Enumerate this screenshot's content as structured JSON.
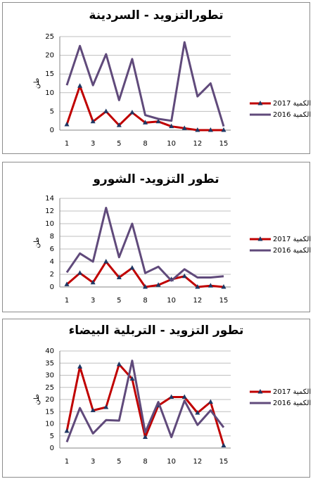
{
  "chart_data": [
    {
      "type": "line",
      "title": "تطورالتزويد - السردينة",
      "ylabel": "طن",
      "categories": [
        "1",
        null,
        "3",
        null,
        "5",
        null,
        "8",
        null,
        "10",
        null,
        "12",
        null,
        "15"
      ],
      "series": [
        {
          "name": "الكمية 2017",
          "color": "#c00000",
          "marker": "triangle",
          "values": [
            1.5,
            11.8,
            2.3,
            5,
            1.3,
            4.7,
            2,
            2.3,
            1,
            0.5,
            0,
            0,
            0
          ]
        },
        {
          "name": "الكمية 2016",
          "color": "#604a7b",
          "marker": "none",
          "values": [
            12,
            22.5,
            12,
            20.3,
            8,
            19,
            4,
            3,
            2.5,
            23.5,
            9,
            12.5,
            1
          ]
        }
      ],
      "ylim": [
        0,
        25
      ],
      "yticks": [
        0,
        5,
        10,
        15,
        20,
        25
      ],
      "grid": true
    },
    {
      "type": "line",
      "title": "تطور التزويد- الشورو",
      "ylabel": "طن",
      "categories": [
        "1",
        null,
        "3",
        null,
        "5",
        null,
        "8",
        null,
        "10",
        null,
        "12",
        null,
        "15"
      ],
      "series": [
        {
          "name": "الكمية 2017",
          "color": "#c00000",
          "marker": "triangle",
          "values": [
            0.4,
            2.2,
            0.7,
            4,
            1.5,
            3,
            0,
            0.3,
            1.2,
            1.7,
            0,
            0.2,
            0
          ]
        },
        {
          "name": "الكمية 2016",
          "color": "#604a7b",
          "marker": "none",
          "values": [
            2.3,
            5.3,
            4,
            12.5,
            4.7,
            10,
            2.2,
            3.2,
            1,
            2.8,
            1.5,
            1.5,
            1.7
          ]
        }
      ],
      "ylim": [
        0,
        14
      ],
      "yticks": [
        0,
        2,
        4,
        6,
        8,
        10,
        12,
        14
      ],
      "grid": true
    },
    {
      "type": "line",
      "title": "تطور التزويد - التربلية البيضاء",
      "ylabel": "طن",
      "categories": [
        "1",
        null,
        "3",
        null,
        "5",
        null,
        "8",
        null,
        "10",
        null,
        "12",
        null,
        "15"
      ],
      "series": [
        {
          "name": "الكمية 2017",
          "color": "#c00000",
          "marker": "triangle",
          "values": [
            7,
            33.5,
            15.5,
            16.8,
            34.5,
            28.5,
            4.5,
            17.5,
            21,
            21,
            14.5,
            19,
            1
          ]
        },
        {
          "name": "الكمية 2016",
          "color": "#604a7b",
          "marker": "none",
          "values": [
            2.5,
            16.5,
            6,
            11.5,
            11.3,
            36,
            6.5,
            19,
            4.5,
            19.5,
            9.5,
            15.5,
            8.5
          ]
        }
      ],
      "ylim": [
        0,
        40
      ],
      "yticks": [
        0,
        5,
        10,
        15,
        20,
        25,
        30,
        35,
        40
      ],
      "grid": true
    }
  ]
}
